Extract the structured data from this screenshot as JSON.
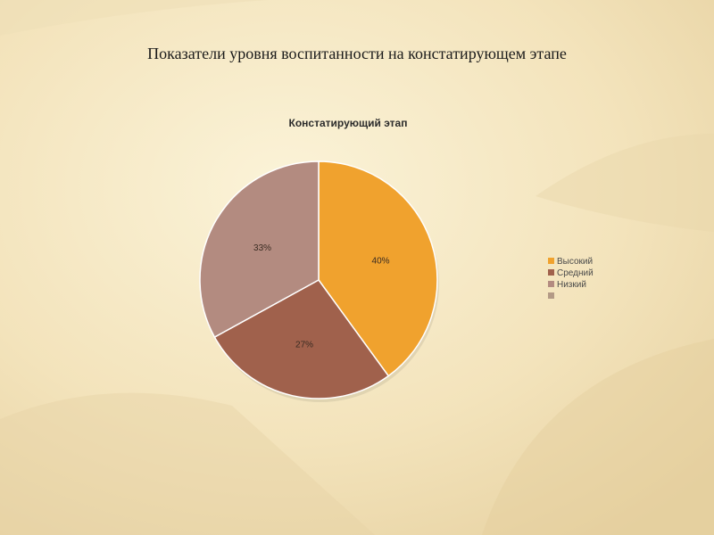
{
  "slide": {
    "title": "Показатели уровня воспитанности на констатирующем этапе"
  },
  "theme": {
    "background_light": "#f8edcc",
    "background_dark": "#e8d3a4"
  },
  "chart_data": {
    "type": "pie",
    "title": "Констатирующий этап",
    "categories": [
      "Высокий",
      "Средний",
      "Низкий",
      ""
    ],
    "values": [
      40,
      27,
      33,
      0
    ],
    "value_labels": [
      "40%",
      "27%",
      "33%",
      ""
    ],
    "colors": [
      "#f0a22e",
      "#a0614c",
      "#b38b80",
      "#b39a86"
    ],
    "legend_position": "right",
    "start_angle": "top, clockwise"
  }
}
